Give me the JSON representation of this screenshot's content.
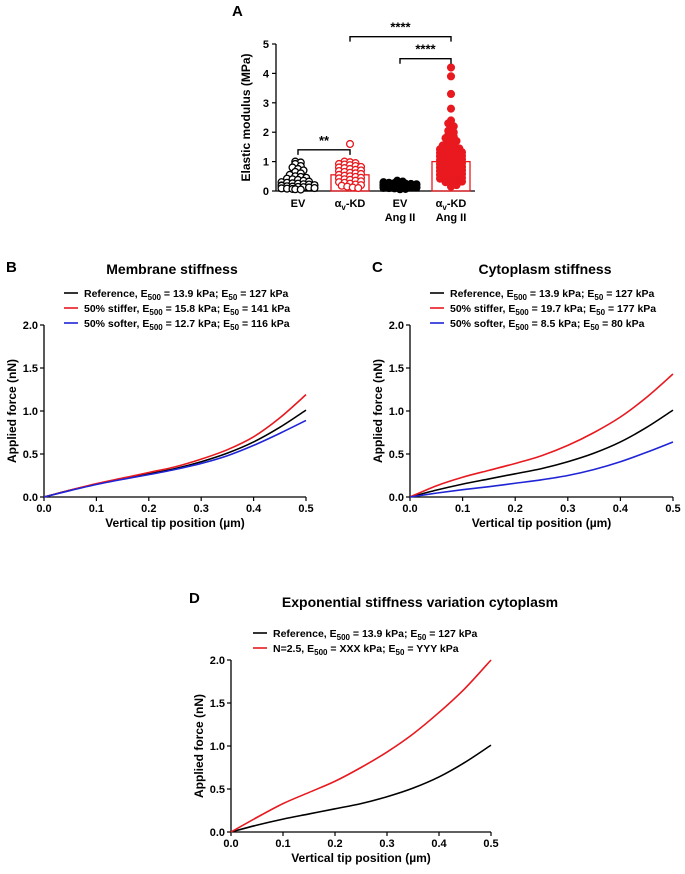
{
  "colors": {
    "black": "#000000",
    "red": "#e8191f",
    "blue": "#1f24d6"
  },
  "chart_data": [
    {
      "panel": "A",
      "type": "scatter",
      "title": "",
      "ylabel": "Elastic modulus (MPa)",
      "ylim": [
        0,
        5
      ],
      "yticks": [
        "0",
        "1",
        "2",
        "3",
        "4",
        "5"
      ],
      "groups": [
        {
          "label": "EV",
          "label2": "",
          "bar_mean": 0.28,
          "color": "#000000",
          "open": true,
          "values": [
            1.0,
            0.97,
            0.92,
            0.85,
            0.8,
            0.75,
            0.7,
            0.65,
            0.6,
            0.55,
            0.5,
            0.48,
            0.45,
            0.42,
            0.4,
            0.38,
            0.35,
            0.32,
            0.3,
            0.28,
            0.26,
            0.25,
            0.23,
            0.22,
            0.2,
            0.19,
            0.18,
            0.16,
            0.15,
            0.14,
            0.13,
            0.12,
            0.1,
            0.09,
            0.08,
            0.07,
            0.06,
            0.05
          ]
        },
        {
          "label": "αv-KD",
          "label2": "",
          "bar_mean": 0.55,
          "color": "#e8191f",
          "open": true,
          "values": [
            1.6,
            1.0,
            0.98,
            0.95,
            0.92,
            0.9,
            0.88,
            0.85,
            0.82,
            0.8,
            0.78,
            0.75,
            0.72,
            0.7,
            0.68,
            0.65,
            0.62,
            0.6,
            0.58,
            0.55,
            0.52,
            0.5,
            0.48,
            0.45,
            0.43,
            0.4,
            0.38,
            0.35,
            0.33,
            0.3,
            0.28,
            0.25,
            0.22,
            0.2,
            0.18,
            0.15,
            0.12,
            0.1
          ]
        },
        {
          "label": "EV",
          "label2": "Ang II",
          "bar_mean": 0.2,
          "color": "#000000",
          "open": false,
          "values": [
            0.35,
            0.32,
            0.3,
            0.28,
            0.27,
            0.26,
            0.25,
            0.24,
            0.23,
            0.22,
            0.21,
            0.2,
            0.19,
            0.18,
            0.17,
            0.16,
            0.15,
            0.14,
            0.13,
            0.12,
            0.11,
            0.1,
            0.09,
            0.08,
            0.07,
            0.06
          ]
        },
        {
          "label": "αv-KD",
          "label2": "Ang II",
          "bar_mean": 1.0,
          "color": "#e8191f",
          "open": false,
          "values": [
            4.2,
            3.9,
            3.3,
            2.8,
            2.4,
            2.3,
            2.2,
            2.1,
            2.05,
            2.0,
            1.9,
            1.85,
            1.8,
            1.75,
            1.7,
            1.65,
            1.6,
            1.55,
            1.5,
            1.48,
            1.45,
            1.42,
            1.4,
            1.38,
            1.35,
            1.32,
            1.3,
            1.28,
            1.25,
            1.22,
            1.2,
            1.18,
            1.15,
            1.12,
            1.1,
            1.08,
            1.05,
            1.02,
            1.0,
            0.98,
            0.95,
            0.92,
            0.9,
            0.88,
            0.85,
            0.82,
            0.8,
            0.78,
            0.75,
            0.72,
            0.7,
            0.68,
            0.65,
            0.62,
            0.6,
            0.58,
            0.55,
            0.52,
            0.5,
            0.48,
            0.45,
            0.42,
            0.4,
            0.38,
            0.35,
            0.32,
            0.3,
            0.25,
            0.2,
            0.15
          ]
        }
      ],
      "significance": [
        {
          "from": 0,
          "to": 1,
          "label": "**",
          "y": 1.4
        },
        {
          "from": 2,
          "to": 3,
          "label": "****",
          "y": 4.5
        },
        {
          "from": 1,
          "to": 3,
          "label": "****",
          "y": 5.25
        }
      ]
    },
    {
      "panel": "B",
      "type": "line",
      "title": "Membrane stiffness",
      "xlabel": "Vertical tip position (µm)",
      "ylabel": "Applied force (nN)",
      "xlim": [
        0,
        0.5
      ],
      "ylim": [
        0,
        2
      ],
      "xticks": [
        "0.0",
        "0.1",
        "0.2",
        "0.3",
        "0.4",
        "0.5"
      ],
      "yticks": [
        "0.0",
        "0.5",
        "1.0",
        "1.5",
        "2.0"
      ],
      "x": [
        0,
        0.05,
        0.1,
        0.15,
        0.2,
        0.25,
        0.3,
        0.35,
        0.4,
        0.45,
        0.5
      ],
      "series": [
        {
          "name": "Reference",
          "legend": {
            "pre": "Reference, E",
            "sub1": "500",
            "mid": " = 13.9 kPa; E",
            "sub2": "50",
            "post": " = 127 kPa"
          },
          "color": "#000000",
          "values": [
            0,
            0.08,
            0.15,
            0.21,
            0.27,
            0.33,
            0.41,
            0.51,
            0.64,
            0.81,
            1.01
          ]
        },
        {
          "name": "50% stiffer",
          "legend": {
            "pre": "50% stiffer, E",
            "sub1": "500",
            "mid": " = 15.8 kPa; E",
            "sub2": "50",
            "post": " = 141 kPa"
          },
          "color": "#e8191f",
          "values": [
            0,
            0.08,
            0.155,
            0.22,
            0.285,
            0.35,
            0.44,
            0.55,
            0.7,
            0.92,
            1.19
          ]
        },
        {
          "name": "50% softer",
          "legend": {
            "pre": "50% softer, E",
            "sub1": "500",
            "mid": " = 12.7 kPa; E",
            "sub2": "50",
            "post": " = 116 kPa"
          },
          "color": "#1f24d6",
          "values": [
            0,
            0.075,
            0.145,
            0.205,
            0.26,
            0.32,
            0.39,
            0.48,
            0.6,
            0.74,
            0.89
          ]
        }
      ]
    },
    {
      "panel": "C",
      "type": "line",
      "title": "Cytoplasm stiffness",
      "xlabel": "Vertical tip position (µm)",
      "ylabel": "Applied force (nN)",
      "xlim": [
        0,
        0.5
      ],
      "ylim": [
        0,
        2
      ],
      "xticks": [
        "0.0",
        "0.1",
        "0.2",
        "0.3",
        "0.4",
        "0.5"
      ],
      "yticks": [
        "0.0",
        "0.5",
        "1.0",
        "1.5",
        "2.0"
      ],
      "x": [
        0,
        0.05,
        0.1,
        0.15,
        0.2,
        0.25,
        0.3,
        0.35,
        0.4,
        0.45,
        0.5
      ],
      "series": [
        {
          "name": "Reference",
          "legend": {
            "pre": "Reference, E",
            "sub1": "500",
            "mid": " = 13.9 kPa; E",
            "sub2": "50",
            "post": " = 127 kPa"
          },
          "color": "#000000",
          "values": [
            0,
            0.08,
            0.15,
            0.21,
            0.27,
            0.33,
            0.41,
            0.51,
            0.64,
            0.81,
            1.01
          ]
        },
        {
          "name": "50% stiffer",
          "legend": {
            "pre": "50% stiffer, E",
            "sub1": "500",
            "mid": " = 19.7 kPa; E",
            "sub2": "50",
            "post": " = 177 kPa"
          },
          "color": "#e8191f",
          "values": [
            0,
            0.13,
            0.23,
            0.31,
            0.39,
            0.48,
            0.6,
            0.75,
            0.93,
            1.16,
            1.43
          ]
        },
        {
          "name": "50% softer",
          "legend": {
            "pre": "50% softer, E",
            "sub1": "500",
            "mid": " = 8.5 kPa; E",
            "sub2": "50",
            "post": " = 80 kPa"
          },
          "color": "#1f24d6",
          "values": [
            0,
            0.045,
            0.085,
            0.12,
            0.16,
            0.2,
            0.25,
            0.32,
            0.41,
            0.52,
            0.64
          ]
        }
      ]
    },
    {
      "panel": "D",
      "type": "line",
      "title": "Exponential stiffness variation cytoplasm",
      "xlabel": "Vertical tip position (µm)",
      "ylabel": "Applied force (nN)",
      "xlim": [
        0,
        0.5
      ],
      "ylim": [
        0,
        2
      ],
      "xticks": [
        "0.0",
        "0.1",
        "0.2",
        "0.3",
        "0.4",
        "0.5"
      ],
      "yticks": [
        "0.0",
        "0.5",
        "1.0",
        "1.5",
        "2.0"
      ],
      "x": [
        0,
        0.05,
        0.1,
        0.15,
        0.2,
        0.25,
        0.3,
        0.35,
        0.4,
        0.45,
        0.5
      ],
      "series": [
        {
          "name": "Reference",
          "legend": {
            "pre": "Reference, E",
            "sub1": "500",
            "mid": " = 13.9 kPa; E",
            "sub2": "50",
            "post": " = 127 kPa"
          },
          "color": "#000000",
          "values": [
            0,
            0.08,
            0.15,
            0.21,
            0.27,
            0.33,
            0.41,
            0.51,
            0.64,
            0.81,
            1.01
          ]
        },
        {
          "name": "N=2.5",
          "legend": {
            "pre": "N=2.5, E",
            "sub1": "500",
            "mid": " = XXX kPa; E",
            "sub2": "50",
            "post": " = YYY kPa"
          },
          "color": "#e8191f",
          "values": [
            0,
            0.17,
            0.33,
            0.46,
            0.59,
            0.75,
            0.93,
            1.14,
            1.39,
            1.67,
            2.0
          ]
        }
      ]
    }
  ]
}
